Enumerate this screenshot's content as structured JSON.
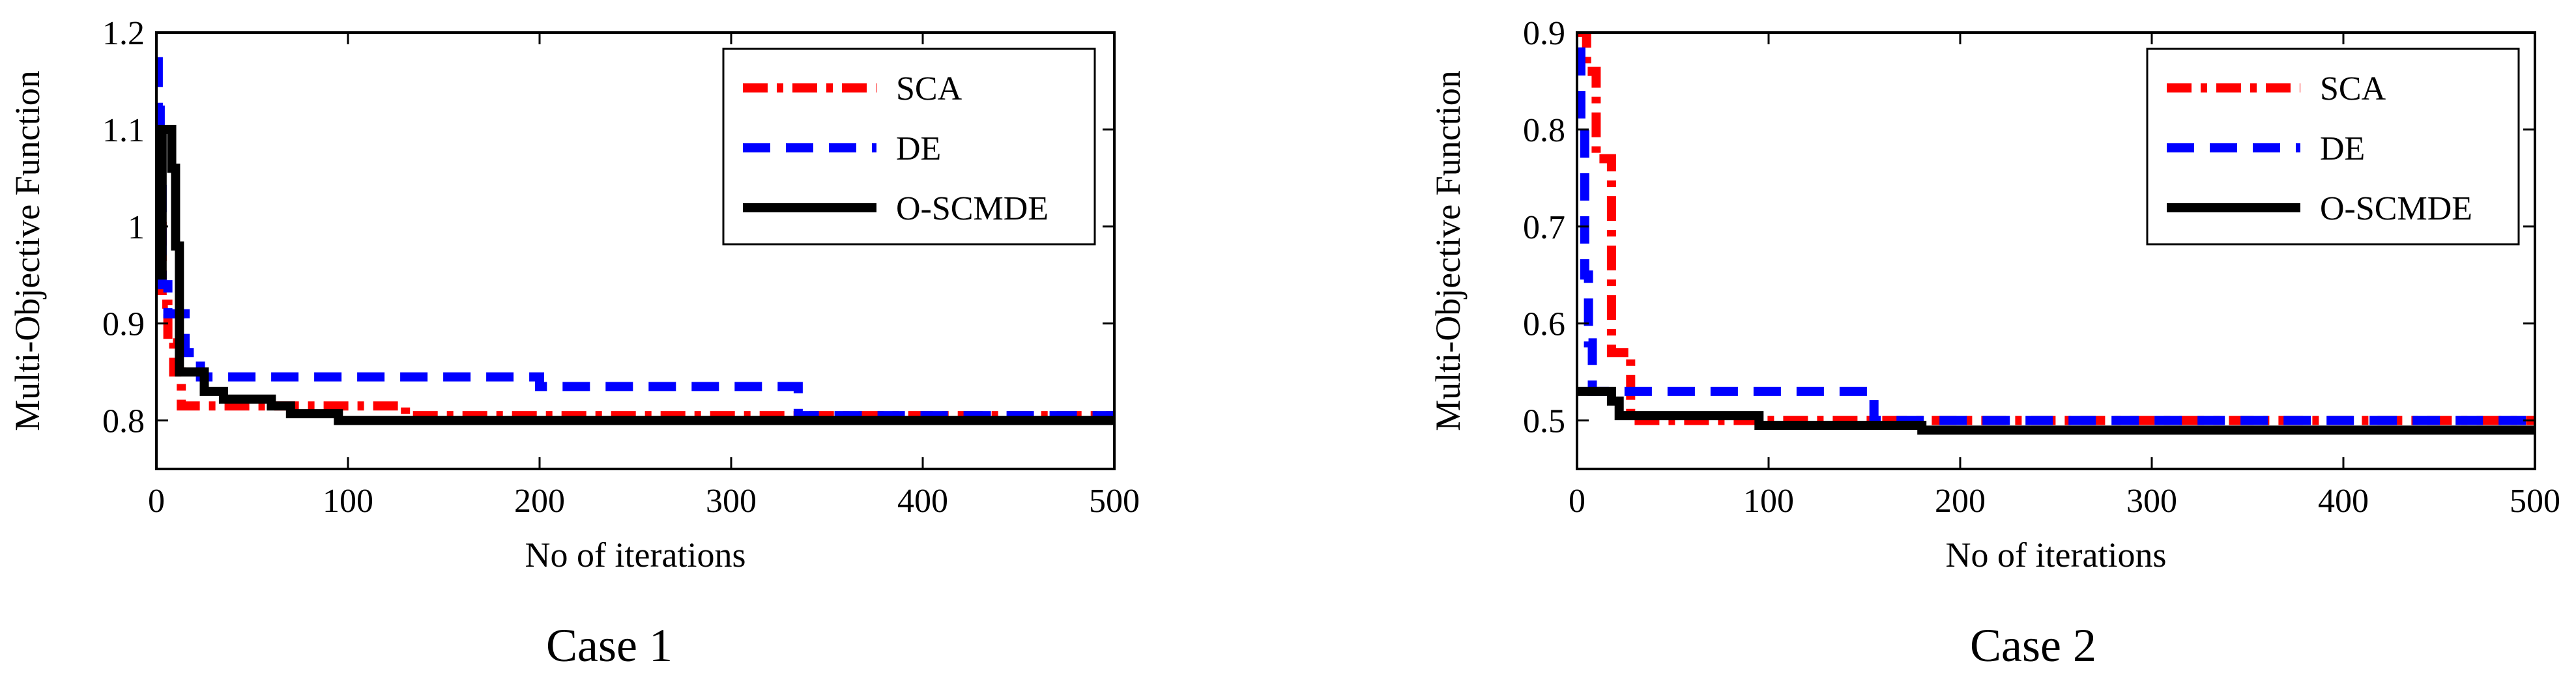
{
  "chart_data": [
    {
      "type": "line",
      "title": "Case 1",
      "xlabel": "No of iterations",
      "ylabel": "Multi-Objective Function",
      "xlim": [
        0,
        500
      ],
      "ylim": [
        0.75,
        1.2
      ],
      "xticks": [
        "0",
        "100",
        "200",
        "300",
        "400",
        "500"
      ],
      "yticks": [
        "0.8",
        "0.9",
        "1",
        "1.1",
        "1.2"
      ],
      "legend_position": "top-right",
      "series": [
        {
          "name": "SCA",
          "color": "#ff0000",
          "style": "dashdot",
          "points": [
            [
              0,
              1.0
            ],
            [
              3,
              1.0
            ],
            [
              3,
              0.92
            ],
            [
              6,
              0.92
            ],
            [
              6,
              0.88
            ],
            [
              9,
              0.88
            ],
            [
              9,
              0.85
            ],
            [
              13,
              0.85
            ],
            [
              13,
              0.815
            ],
            [
              130,
              0.815
            ],
            [
              130,
              0.805
            ],
            [
              500,
              0.805
            ]
          ]
        },
        {
          "name": "DE",
          "color": "#0000ff",
          "style": "dashed",
          "points": [
            [
              0,
              1.17
            ],
            [
              1,
              1.17
            ],
            [
              1,
              1.12
            ],
            [
              2,
              1.12
            ],
            [
              2,
              1.05
            ],
            [
              3,
              1.05
            ],
            [
              3,
              0.94
            ],
            [
              6,
              0.94
            ],
            [
              6,
              0.91
            ],
            [
              15,
              0.91
            ],
            [
              15,
              0.87
            ],
            [
              23,
              0.87
            ],
            [
              23,
              0.845
            ],
            [
              200,
              0.845
            ],
            [
              200,
              0.835
            ],
            [
              335,
              0.835
            ],
            [
              335,
              0.805
            ],
            [
              500,
              0.805
            ]
          ]
        },
        {
          "name": "O-SCMDE",
          "color": "#000000",
          "style": "solid",
          "points": [
            [
              0,
              0.95
            ],
            [
              3,
              0.95
            ],
            [
              3,
              1.1
            ],
            [
              8,
              1.1
            ],
            [
              8,
              1.06
            ],
            [
              10,
              1.06
            ],
            [
              10,
              0.98
            ],
            [
              12,
              0.98
            ],
            [
              12,
              0.85
            ],
            [
              25,
              0.85
            ],
            [
              25,
              0.83
            ],
            [
              35,
              0.83
            ],
            [
              35,
              0.822
            ],
            [
              60,
              0.822
            ],
            [
              60,
              0.815
            ],
            [
              70,
              0.815
            ],
            [
              70,
              0.807
            ],
            [
              95,
              0.807
            ],
            [
              95,
              0.8
            ],
            [
              500,
              0.8
            ]
          ]
        }
      ]
    },
    {
      "type": "line",
      "title": "Case 2",
      "xlabel": "No of iterations",
      "ylabel": "Multi-Objective Function",
      "xlim": [
        0,
        500
      ],
      "ylim": [
        0.45,
        0.9
      ],
      "xticks": [
        "0",
        "100",
        "200",
        "300",
        "400",
        "500"
      ],
      "yticks": [
        "0.5",
        "0.6",
        "0.7",
        "0.8",
        "0.9"
      ],
      "legend_position": "top-right",
      "series": [
        {
          "name": "SCA",
          "color": "#ff0000",
          "style": "dashdot",
          "points": [
            [
              0,
              0.9
            ],
            [
              5,
              0.9
            ],
            [
              5,
              0.86
            ],
            [
              10,
              0.86
            ],
            [
              10,
              0.77
            ],
            [
              18,
              0.77
            ],
            [
              18,
              0.57
            ],
            [
              28,
              0.57
            ],
            [
              28,
              0.5
            ],
            [
              500,
              0.5
            ]
          ]
        },
        {
          "name": "DE",
          "color": "#0000ff",
          "style": "dashed",
          "points": [
            [
              0,
              0.88
            ],
            [
              2,
              0.88
            ],
            [
              2,
              0.8
            ],
            [
              4,
              0.8
            ],
            [
              4,
              0.65
            ],
            [
              6,
              0.65
            ],
            [
              6,
              0.58
            ],
            [
              8,
              0.58
            ],
            [
              8,
              0.53
            ],
            [
              155,
              0.53
            ],
            [
              155,
              0.5
            ],
            [
              500,
              0.5
            ]
          ]
        },
        {
          "name": "O-SCMDE",
          "color": "#000000",
          "style": "solid",
          "points": [
            [
              0,
              0.53
            ],
            [
              18,
              0.53
            ],
            [
              18,
              0.52
            ],
            [
              22,
              0.52
            ],
            [
              22,
              0.505
            ],
            [
              95,
              0.505
            ],
            [
              95,
              0.495
            ],
            [
              180,
              0.495
            ],
            [
              180,
              0.49
            ],
            [
              500,
              0.49
            ]
          ]
        }
      ]
    }
  ]
}
